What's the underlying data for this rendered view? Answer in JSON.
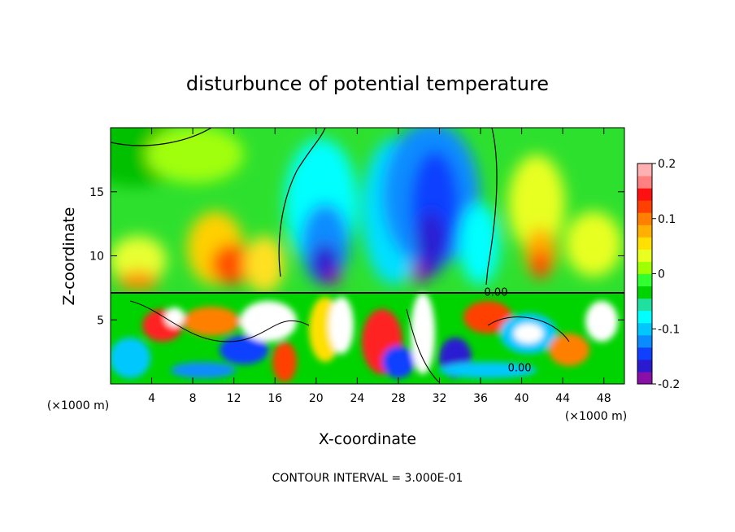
{
  "chart_data": {
    "type": "heatmap",
    "title": "disturbunce of potential temperature",
    "xlabel": "X-coordinate",
    "ylabel": "Z-coordinate",
    "x_unit": "(×1000 m)",
    "x_unit_right": "(×1000 m)",
    "footer": "CONTOUR INTERVAL = 3.000E-01",
    "xlim": [
      0,
      50
    ],
    "ylim": [
      0,
      20
    ],
    "x_ticks": [
      4,
      8,
      12,
      16,
      20,
      24,
      28,
      32,
      36,
      40,
      44,
      48
    ],
    "y_ticks": [
      5,
      10,
      15
    ],
    "colorbar": {
      "min": -0.2,
      "max": 0.2,
      "ticks": [
        "0.2",
        "0.1",
        "0",
        "-0.1",
        "-0.2"
      ],
      "tick_values": [
        0.2,
        0.1,
        0,
        -0.1,
        -0.2
      ],
      "colors": [
        "#8a0fa8",
        "#2a1ad0",
        "#1040ff",
        "#0a8cff",
        "#00c8ff",
        "#00ffff",
        "#20e0a0",
        "#00d400",
        "#30ff30",
        "#a0ff00",
        "#e8ff20",
        "#ffe000",
        "#ffb000",
        "#ff8000",
        "#ff4000",
        "#ff1010",
        "#ff8080",
        "#ffb0b0"
      ]
    },
    "contour_labels": [
      "0.00",
      "0.00"
    ],
    "contour_label_positions_x": [
      37.5,
      39.8
    ],
    "contour_label_positions_y": [
      6.9,
      1.0
    ]
  }
}
